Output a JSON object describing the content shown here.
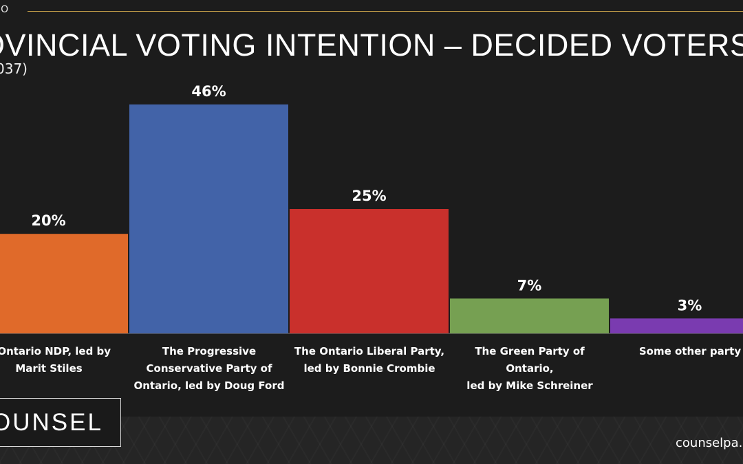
{
  "header": {
    "kicker": "IO",
    "title": "OVINCIAL VOTING INTENTION – DECIDED VOTERS",
    "subtitle": "037)"
  },
  "chart_data": {
    "type": "bar",
    "categories": [
      [
        "e Ontario NDP, led by",
        "Marit Stiles"
      ],
      [
        "The Progressive",
        "Conservative Party of",
        "Ontario, led by Doug Ford"
      ],
      [
        "The Ontario Liberal Party,",
        "led by Bonnie Crombie"
      ],
      [
        "The Green Party of Ontario,",
        "led by Mike Schreiner"
      ],
      [
        "Some other party"
      ]
    ],
    "values": [
      20,
      46,
      25,
      7,
      3
    ],
    "value_labels": [
      "20%",
      "46%",
      "25%",
      "7%",
      "3%"
    ],
    "colors": [
      "#e06a2a",
      "#4263a8",
      "#c9302c",
      "#76a052",
      "#7a3bb0"
    ],
    "ylim": [
      0,
      50
    ],
    "grid": false,
    "legend": "none"
  },
  "footer": {
    "logo": "OUNSEL",
    "website": "counselpa.c"
  }
}
